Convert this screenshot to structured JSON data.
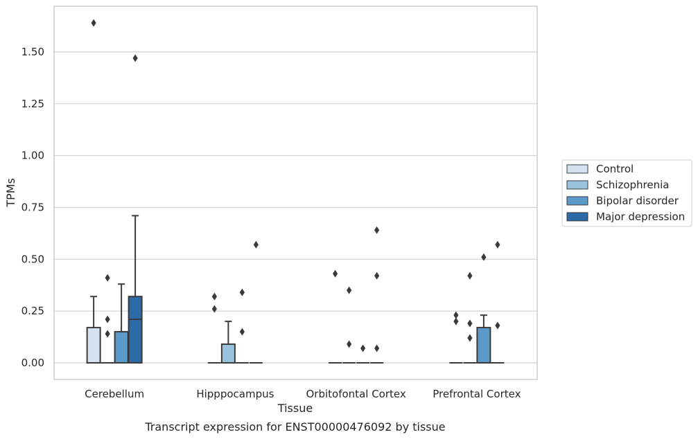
{
  "chart_data": {
    "type": "box",
    "title": "",
    "caption": "Transcript expression for ENST00000476092 by tissue",
    "xlabel": "Tissue",
    "ylabel": "TPMs",
    "ylim": [
      -0.08,
      1.72
    ],
    "yticks": [
      "0.00",
      "0.25",
      "0.50",
      "0.75",
      "1.00",
      "1.25",
      "1.50"
    ],
    "ytick_values": [
      0,
      0.25,
      0.5,
      0.75,
      1.0,
      1.25,
      1.5
    ],
    "categories": [
      "Cerebellum",
      "Hipppocampus",
      "Orbitofontal Cortex",
      "Prefrontal Cortex"
    ],
    "grid": true,
    "legend_position": "right",
    "series": [
      {
        "name": "Control",
        "color": "#d4e2f0",
        "boxes": [
          {
            "q1": 0,
            "median": 0,
            "q3": 0.17,
            "whislo": 0,
            "whishi": 0.32,
            "outliers": [
              1.64
            ]
          },
          {
            "q1": 0,
            "median": 0,
            "q3": 0,
            "whislo": 0,
            "whishi": 0,
            "outliers": [
              0.26,
              0.32
            ]
          },
          {
            "q1": 0,
            "median": 0,
            "q3": 0,
            "whislo": 0,
            "whishi": 0,
            "outliers": [
              0.43
            ]
          },
          {
            "q1": 0,
            "median": 0,
            "q3": 0,
            "whislo": 0,
            "whishi": 0,
            "outliers": [
              0.2,
              0.23
            ]
          }
        ]
      },
      {
        "name": "Schizophrenia",
        "color": "#9ac4de",
        "boxes": [
          {
            "q1": 0,
            "median": 0,
            "q3": 0,
            "whislo": 0,
            "whishi": 0,
            "outliers": [
              0.14,
              0.21,
              0.41
            ]
          },
          {
            "q1": 0,
            "median": 0,
            "q3": 0.09,
            "whislo": 0,
            "whishi": 0.2,
            "outliers": []
          },
          {
            "q1": 0,
            "median": 0,
            "q3": 0,
            "whislo": 0,
            "whishi": 0,
            "outliers": [
              0.09,
              0.35
            ]
          },
          {
            "q1": 0,
            "median": 0,
            "q3": 0,
            "whislo": 0,
            "whishi": 0,
            "outliers": [
              0.12,
              0.19,
              0.42
            ]
          }
        ]
      },
      {
        "name": "Bipolar disorder",
        "color": "#5c9bc9",
        "boxes": [
          {
            "q1": 0,
            "median": 0,
            "q3": 0.15,
            "whislo": 0,
            "whishi": 0.38,
            "outliers": []
          },
          {
            "q1": 0,
            "median": 0,
            "q3": 0,
            "whislo": 0,
            "whishi": 0,
            "outliers": [
              0.15,
              0.34
            ]
          },
          {
            "q1": 0,
            "median": 0,
            "q3": 0,
            "whislo": 0,
            "whishi": 0,
            "outliers": [
              0.07
            ]
          },
          {
            "q1": 0,
            "median": 0,
            "q3": 0.17,
            "whislo": 0,
            "whishi": 0.23,
            "outliers": [
              0.51
            ]
          }
        ]
      },
      {
        "name": "Major depression",
        "color": "#2c6aa8",
        "boxes": [
          {
            "q1": 0,
            "median": 0.21,
            "q3": 0.32,
            "whislo": 0,
            "whishi": 0.71,
            "outliers": [
              1.47
            ]
          },
          {
            "q1": 0,
            "median": 0,
            "q3": 0,
            "whislo": 0,
            "whishi": 0,
            "outliers": [
              0.57
            ]
          },
          {
            "q1": 0,
            "median": 0,
            "q3": 0,
            "whislo": 0,
            "whishi": 0,
            "outliers": [
              0.07,
              0.42,
              0.64
            ]
          },
          {
            "q1": 0,
            "median": 0,
            "q3": 0,
            "whislo": 0,
            "whishi": 0,
            "outliers": [
              0.18,
              0.57
            ]
          }
        ]
      }
    ]
  }
}
